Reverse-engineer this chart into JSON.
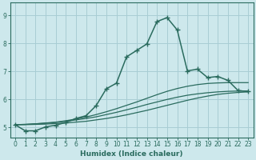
{
  "title": "",
  "xlabel": "Humidex (Indice chaleur)",
  "ylabel": "",
  "bg_color": "#cde8ec",
  "grid_color": "#a8cdd4",
  "line_color": "#2a6b5e",
  "xlim": [
    -0.5,
    23.5
  ],
  "ylim": [
    4.65,
    9.45
  ],
  "xticks": [
    0,
    1,
    2,
    3,
    4,
    5,
    6,
    7,
    8,
    9,
    10,
    11,
    12,
    13,
    14,
    15,
    16,
    17,
    18,
    19,
    20,
    21,
    22,
    23
  ],
  "yticks": [
    5,
    6,
    7,
    8,
    9
  ],
  "line1_x": [
    0,
    1,
    2,
    3,
    4,
    5,
    6,
    7,
    8,
    9,
    10,
    11,
    12,
    13,
    14,
    15,
    16,
    17,
    18,
    19,
    20,
    21,
    22,
    23
  ],
  "line1_y": [
    5.1,
    4.88,
    4.88,
    5.02,
    5.08,
    5.18,
    5.32,
    5.42,
    5.78,
    6.38,
    6.58,
    7.52,
    7.75,
    7.98,
    8.78,
    8.92,
    8.48,
    7.02,
    7.08,
    6.78,
    6.82,
    6.68,
    6.32,
    6.28
  ],
  "line2_x": [
    0,
    1,
    2,
    3,
    4,
    5,
    6,
    7,
    8,
    9,
    10,
    11,
    12,
    13,
    14,
    15,
    16,
    17,
    18,
    19,
    20,
    21,
    22,
    23
  ],
  "line2_y": [
    5.1,
    5.11,
    5.13,
    5.16,
    5.19,
    5.24,
    5.3,
    5.37,
    5.46,
    5.56,
    5.67,
    5.79,
    5.91,
    6.04,
    6.17,
    6.29,
    6.39,
    6.47,
    6.53,
    6.57,
    6.59,
    6.6,
    6.6,
    6.6
  ],
  "line3_x": [
    0,
    1,
    2,
    3,
    4,
    5,
    6,
    7,
    8,
    9,
    10,
    11,
    12,
    13,
    14,
    15,
    16,
    17,
    18,
    19,
    20,
    21,
    22,
    23
  ],
  "line3_y": [
    5.1,
    5.11,
    5.13,
    5.15,
    5.18,
    5.22,
    5.27,
    5.32,
    5.38,
    5.46,
    5.54,
    5.63,
    5.72,
    5.82,
    5.91,
    6.0,
    6.08,
    6.15,
    6.2,
    6.24,
    6.27,
    6.29,
    6.3,
    6.3
  ],
  "line4_x": [
    0,
    1,
    2,
    3,
    4,
    5,
    6,
    7,
    8,
    9,
    10,
    11,
    12,
    13,
    14,
    15,
    16,
    17,
    18,
    19,
    20,
    21,
    22,
    23
  ],
  "line4_y": [
    5.1,
    5.1,
    5.11,
    5.12,
    5.14,
    5.16,
    5.19,
    5.22,
    5.27,
    5.32,
    5.38,
    5.45,
    5.53,
    5.61,
    5.7,
    5.79,
    5.88,
    5.97,
    6.05,
    6.12,
    6.18,
    6.22,
    6.25,
    6.27
  ]
}
